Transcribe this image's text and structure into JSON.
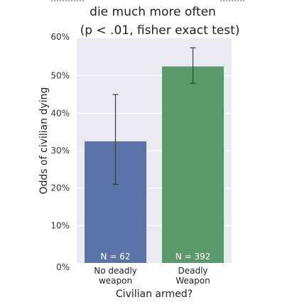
{
  "chart_data": {
    "type": "bar",
    "title_lines": [
      "die much more often",
      "(p < .01, fisher exact test)"
    ],
    "categories": [
      [
        "No deadly",
        "weapon"
      ],
      [
        "Deadly",
        "Weapon"
      ]
    ],
    "values": [
      32.5,
      52.5
    ],
    "error_low": [
      21,
      48
    ],
    "error_high": [
      45,
      57.5
    ],
    "bar_labels": [
      "N = 62",
      "N = 392"
    ],
    "bar_colors": [
      "#5a73a8",
      "#5a9a6a"
    ],
    "xlabel": "Civilian armed?",
    "ylabel": "Odds of civilian dying",
    "ylim": [
      0,
      60
    ],
    "yticks": [
      "0%",
      "10%",
      "20%",
      "30%",
      "40%",
      "50%",
      "60%"
    ],
    "grid": true,
    "background": "#eaeaf2"
  }
}
